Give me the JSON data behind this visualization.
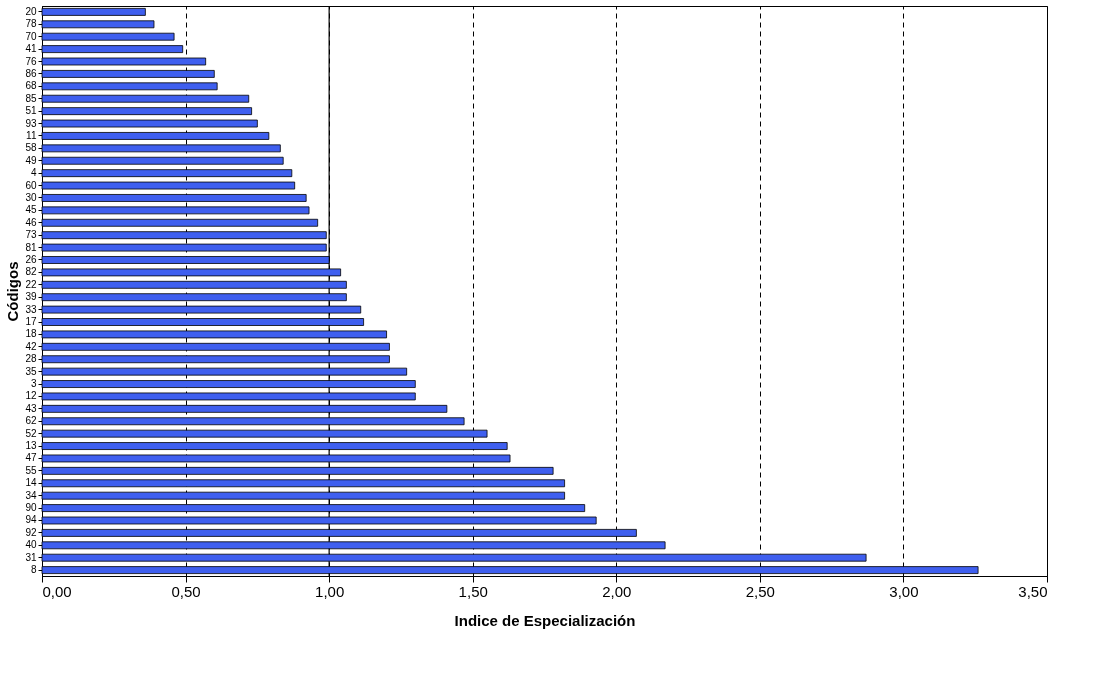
{
  "chart_data": {
    "type": "bar",
    "orientation": "horizontal",
    "xlabel": "Indice de Especialización",
    "ylabel": "Códigos",
    "categories": [
      "20",
      "78",
      "70",
      "41",
      "76",
      "86",
      "68",
      "85",
      "51",
      "93",
      "11",
      "58",
      "49",
      "4",
      "60",
      "30",
      "45",
      "46",
      "73",
      "81",
      "26",
      "82",
      "22",
      "39",
      "33",
      "17",
      "18",
      "42",
      "28",
      "35",
      "3",
      "12",
      "43",
      "62",
      "52",
      "13",
      "47",
      "55",
      "14",
      "34",
      "90",
      "94",
      "92",
      "40",
      "31",
      "8"
    ],
    "values": [
      0.36,
      0.39,
      0.46,
      0.49,
      0.57,
      0.6,
      0.61,
      0.72,
      0.73,
      0.75,
      0.79,
      0.83,
      0.84,
      0.87,
      0.88,
      0.92,
      0.93,
      0.96,
      0.99,
      0.99,
      1.0,
      1.04,
      1.06,
      1.06,
      1.11,
      1.12,
      1.2,
      1.21,
      1.21,
      1.27,
      1.3,
      1.3,
      1.41,
      1.47,
      1.55,
      1.62,
      1.63,
      1.78,
      1.82,
      1.82,
      1.89,
      1.93,
      2.07,
      2.17,
      2.87,
      3.26
    ],
    "color": "#3f5fef",
    "xlim": [
      0,
      3.5
    ],
    "xticks": [
      {
        "value": 0,
        "label": "0,00"
      },
      {
        "value": 0.5,
        "label": "0,50"
      },
      {
        "value": 1,
        "label": "1,00"
      },
      {
        "value": 1.5,
        "label": "1,50"
      },
      {
        "value": 2,
        "label": "2,00"
      },
      {
        "value": 2.5,
        "label": "2,50"
      },
      {
        "value": 3,
        "label": "3,00"
      },
      {
        "value": 3.5,
        "label": "3,50"
      }
    ],
    "grid": "x",
    "ref_lines": [
      {
        "axis": "x",
        "value": 1,
        "label": null,
        "color": "#000000",
        "line_style": "solid"
      }
    ]
  }
}
